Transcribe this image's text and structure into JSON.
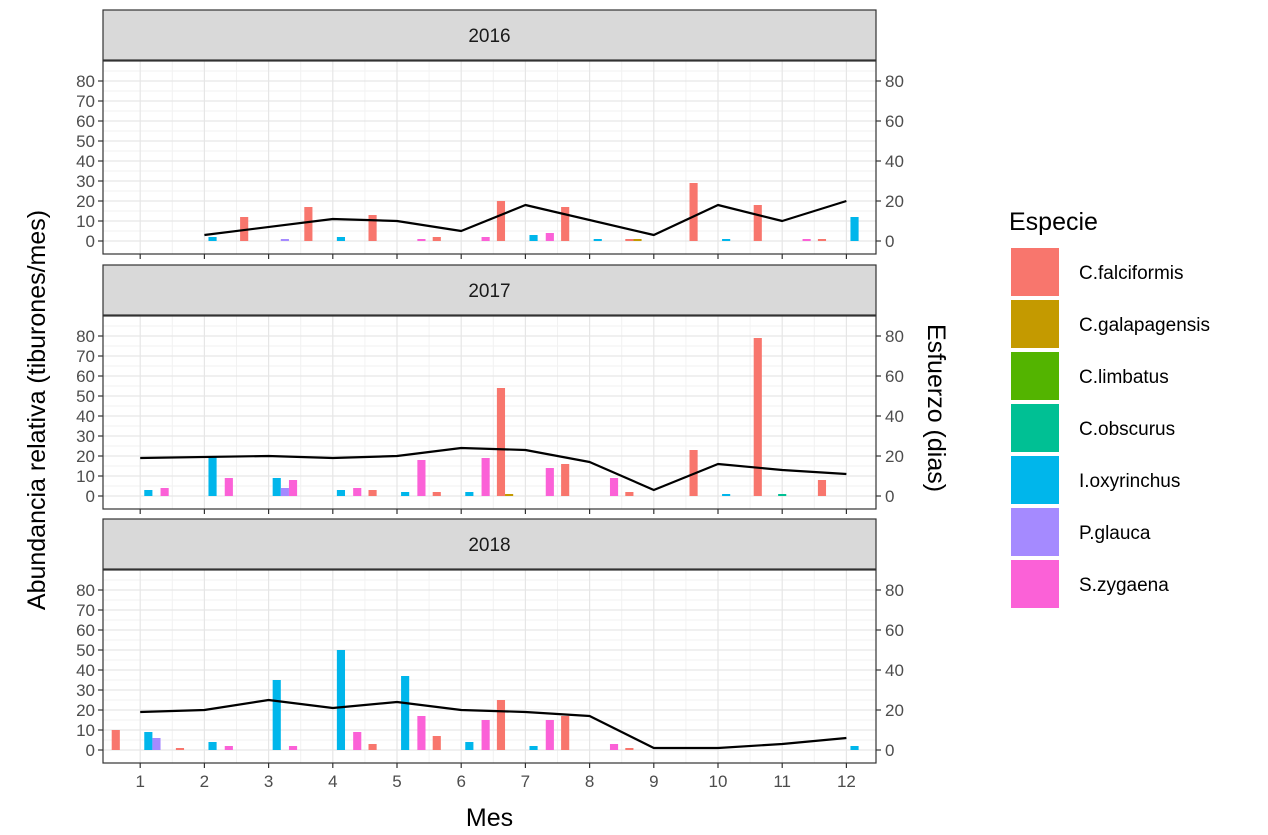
{
  "chart_data": {
    "type": "bar",
    "xlabel": "Mes",
    "ylabel": "Abundancia relativa (tiburones/mes)",
    "y2label": "Esfuerzo (dias)",
    "ylim": [
      0,
      85
    ],
    "y2lim": [
      0,
      85
    ],
    "yticks": [
      "0",
      "10",
      "20",
      "30",
      "40",
      "50",
      "60",
      "70",
      "80"
    ],
    "y2ticks": [
      "0",
      "20",
      "40",
      "60",
      "80"
    ],
    "categories": [
      "1",
      "2",
      "3",
      "4",
      "5",
      "6",
      "7",
      "8",
      "9",
      "10",
      "11",
      "12"
    ],
    "legend": {
      "title": "Especie",
      "position": "right",
      "entries": [
        "C.falciformis",
        "C.galapagensis",
        "C.limbatus",
        "C.obscurus",
        "I.oxyrinchus",
        "P.glauca",
        "S.zygaena"
      ]
    },
    "colors": {
      "C.falciformis": "#F8766D",
      "C.galapagensis": "#C49A00",
      "C.limbatus": "#53B400",
      "C.obscurus": "#00C094",
      "I.oxyrinchus": "#00B6EB",
      "P.glauca": "#A58AFF",
      "S.zygaena": "#FB61D7",
      "effort_line": "#000000"
    },
    "grid": true,
    "panels": [
      {
        "label": "2016",
        "bars": [
          {
            "month": 2,
            "species": "I.oxyrinchus",
            "value": 2
          },
          {
            "month": 3,
            "species": "C.falciformis",
            "value": 12
          },
          {
            "month": 3,
            "species": "P.glauca",
            "value": 1
          },
          {
            "month": 4,
            "species": "C.falciformis",
            "value": 17
          },
          {
            "month": 4,
            "species": "I.oxyrinchus",
            "value": 2
          },
          {
            "month": 5,
            "species": "C.falciformis",
            "value": 13
          },
          {
            "month": 5,
            "species": "S.zygaena",
            "value": 1
          },
          {
            "month": 6,
            "species": "C.falciformis",
            "value": 2
          },
          {
            "month": 6,
            "species": "S.zygaena",
            "value": 2
          },
          {
            "month": 7,
            "species": "C.falciformis",
            "value": 20
          },
          {
            "month": 7,
            "species": "I.oxyrinchus",
            "value": 3
          },
          {
            "month": 7,
            "species": "S.zygaena",
            "value": 4
          },
          {
            "month": 8,
            "species": "C.falciformis",
            "value": 17
          },
          {
            "month": 8,
            "species": "I.oxyrinchus",
            "value": 1
          },
          {
            "month": 9,
            "species": "C.falciformis",
            "value": 1
          },
          {
            "month": 9,
            "species": "C.galapagensis",
            "value": 1
          },
          {
            "month": 10,
            "species": "C.falciformis",
            "value": 29
          },
          {
            "month": 10,
            "species": "I.oxyrinchus",
            "value": 1
          },
          {
            "month": 11,
            "species": "C.falciformis",
            "value": 18
          },
          {
            "month": 11,
            "species": "S.zygaena",
            "value": 1
          },
          {
            "month": 12,
            "species": "C.falciformis",
            "value": 1
          },
          {
            "month": 12,
            "species": "I.oxyrinchus",
            "value": 12
          }
        ],
        "effort": [
          [
            2,
            3
          ],
          [
            4,
            11
          ],
          [
            5,
            10
          ],
          [
            6,
            5
          ],
          [
            7,
            18
          ],
          [
            9,
            3
          ],
          [
            10,
            18
          ],
          [
            11,
            10
          ],
          [
            12,
            20
          ]
        ]
      },
      {
        "label": "2017",
        "bars": [
          {
            "month": 1,
            "species": "I.oxyrinchus",
            "value": 3
          },
          {
            "month": 1,
            "species": "S.zygaena",
            "value": 4
          },
          {
            "month": 2,
            "species": "I.oxyrinchus",
            "value": 20
          },
          {
            "month": 2,
            "species": "S.zygaena",
            "value": 9
          },
          {
            "month": 3,
            "species": "I.oxyrinchus",
            "value": 9
          },
          {
            "month": 3,
            "species": "P.glauca",
            "value": 4
          },
          {
            "month": 3,
            "species": "S.zygaena",
            "value": 8
          },
          {
            "month": 4,
            "species": "I.oxyrinchus",
            "value": 3
          },
          {
            "month": 4,
            "species": "S.zygaena",
            "value": 4
          },
          {
            "month": 5,
            "species": "C.falciformis",
            "value": 3
          },
          {
            "month": 5,
            "species": "I.oxyrinchus",
            "value": 2
          },
          {
            "month": 5,
            "species": "S.zygaena",
            "value": 18
          },
          {
            "month": 6,
            "species": "C.falciformis",
            "value": 2
          },
          {
            "month": 6,
            "species": "I.oxyrinchus",
            "value": 2
          },
          {
            "month": 6,
            "species": "S.zygaena",
            "value": 19
          },
          {
            "month": 7,
            "species": "C.falciformis",
            "value": 54
          },
          {
            "month": 7,
            "species": "C.galapagensis",
            "value": 1
          },
          {
            "month": 7,
            "species": "S.zygaena",
            "value": 14
          },
          {
            "month": 8,
            "species": "C.falciformis",
            "value": 16
          },
          {
            "month": 8,
            "species": "S.zygaena",
            "value": 9
          },
          {
            "month": 9,
            "species": "C.falciformis",
            "value": 2
          },
          {
            "month": 10,
            "species": "C.falciformis",
            "value": 23
          },
          {
            "month": 10,
            "species": "I.oxyrinchus",
            "value": 1
          },
          {
            "month": 11,
            "species": "C.falciformis",
            "value": 79
          },
          {
            "month": 11,
            "species": "C.obscurus",
            "value": 1
          },
          {
            "month": 12,
            "species": "C.falciformis",
            "value": 8
          }
        ],
        "effort": [
          [
            1,
            19
          ],
          [
            3,
            20
          ],
          [
            4,
            19
          ],
          [
            5,
            20
          ],
          [
            6,
            24
          ],
          [
            7,
            23
          ],
          [
            8,
            17
          ],
          [
            9,
            3
          ],
          [
            10,
            16
          ],
          [
            11,
            13
          ],
          [
            12,
            11
          ]
        ]
      },
      {
        "label": "2018",
        "bars": [
          {
            "month": 1,
            "species": "C.falciformis",
            "value": 10
          },
          {
            "month": 1,
            "species": "I.oxyrinchus",
            "value": 9
          },
          {
            "month": 1,
            "species": "P.glauca",
            "value": 6
          },
          {
            "month": 2,
            "species": "C.falciformis",
            "value": 1
          },
          {
            "month": 2,
            "species": "I.oxyrinchus",
            "value": 4
          },
          {
            "month": 2,
            "species": "S.zygaena",
            "value": 2
          },
          {
            "month": 3,
            "species": "I.oxyrinchus",
            "value": 35
          },
          {
            "month": 3,
            "species": "S.zygaena",
            "value": 2
          },
          {
            "month": 4,
            "species": "I.oxyrinchus",
            "value": 50
          },
          {
            "month": 4,
            "species": "S.zygaena",
            "value": 9
          },
          {
            "month": 5,
            "species": "C.falciformis",
            "value": 3
          },
          {
            "month": 5,
            "species": "I.oxyrinchus",
            "value": 37
          },
          {
            "month": 5,
            "species": "S.zygaena",
            "value": 17
          },
          {
            "month": 6,
            "species": "C.falciformis",
            "value": 7
          },
          {
            "month": 6,
            "species": "I.oxyrinchus",
            "value": 4
          },
          {
            "month": 6,
            "species": "S.zygaena",
            "value": 15
          },
          {
            "month": 7,
            "species": "C.falciformis",
            "value": 25
          },
          {
            "month": 7,
            "species": "I.oxyrinchus",
            "value": 2
          },
          {
            "month": 7,
            "species": "S.zygaena",
            "value": 15
          },
          {
            "month": 8,
            "species": "C.falciformis",
            "value": 17
          },
          {
            "month": 8,
            "species": "S.zygaena",
            "value": 3
          },
          {
            "month": 9,
            "species": "C.falciformis",
            "value": 1
          },
          {
            "month": 12,
            "species": "I.oxyrinchus",
            "value": 2
          }
        ],
        "effort": [
          [
            1,
            19
          ],
          [
            2,
            20
          ],
          [
            3,
            25
          ],
          [
            4,
            21
          ],
          [
            5,
            24
          ],
          [
            6,
            20
          ],
          [
            7,
            19
          ],
          [
            8,
            17
          ],
          [
            9,
            1
          ],
          [
            10,
            1
          ],
          [
            11,
            3
          ],
          [
            12,
            6
          ]
        ]
      }
    ]
  }
}
